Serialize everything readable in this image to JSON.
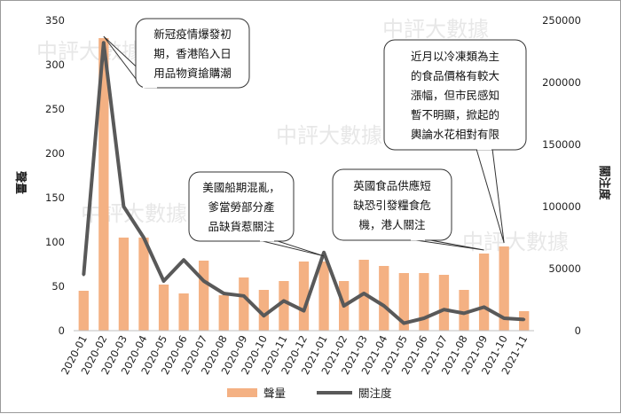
{
  "chart_data": {
    "type": "bar+line",
    "categories": [
      "2020-01",
      "2020-02",
      "2020-03",
      "2020-04",
      "2020-05",
      "2020-06",
      "2020-07",
      "2020-08",
      "2020-09",
      "2020-10",
      "2020-11",
      "2020-12",
      "2021-01",
      "2021-02",
      "2021-03",
      "2021-04",
      "2021-05",
      "2021-06",
      "2021-07",
      "2021-08",
      "2021-09",
      "2021-10",
      "2021-11"
    ],
    "series": [
      {
        "name": "聲量",
        "type": "bar",
        "axis": "left",
        "color": "#f4b183",
        "values": [
          45,
          330,
          105,
          105,
          52,
          42,
          79,
          40,
          60,
          46,
          56,
          78,
          78,
          56,
          80,
          73,
          65,
          65,
          63,
          46,
          87,
          95,
          22
        ]
      },
      {
        "name": "關注度",
        "type": "line",
        "axis": "right",
        "color": "#595959",
        "values": [
          45000,
          232000,
          100000,
          75000,
          40000,
          57000,
          40000,
          30000,
          28000,
          12000,
          24000,
          16000,
          63000,
          20000,
          30000,
          20000,
          6000,
          10000,
          17000,
          14000,
          19000,
          10000,
          9000
        ]
      }
    ],
    "ylabel_left": "聲量",
    "ylabel_right": "關注度",
    "ylim_left": [
      0,
      350
    ],
    "ylim_right": [
      0,
      250000
    ],
    "yticks_left": [
      "0",
      "50",
      "100",
      "150",
      "200",
      "250",
      "300",
      "350"
    ],
    "yticks_right": [
      "0",
      "50000",
      "100000",
      "150000",
      "200000",
      "250000"
    ],
    "grid": false,
    "legend_position": "bottom-center",
    "annotations": [
      {
        "target": "2020-02",
        "lines": [
          "新冠疫情爆發初",
          "期，香港陷入日",
          "用品物資搶購潮"
        ]
      },
      {
        "target": "2021-01",
        "lines": [
          "美國船期混亂，",
          "爹當勞部分產",
          "品缺貨惹關注"
        ]
      },
      {
        "target": "2021-09",
        "lines": [
          "英國食品供應短",
          "缺恐引發糧食危",
          "機，港人關注"
        ]
      },
      {
        "target": "2021-10",
        "lines": [
          "近月以冷凍類為主",
          "的食品價格有較大",
          "漲幅，但市民感知",
          "暫不明顯，掀起的",
          "輿論水花相對有限"
        ]
      }
    ],
    "watermark": "中評大數據"
  }
}
